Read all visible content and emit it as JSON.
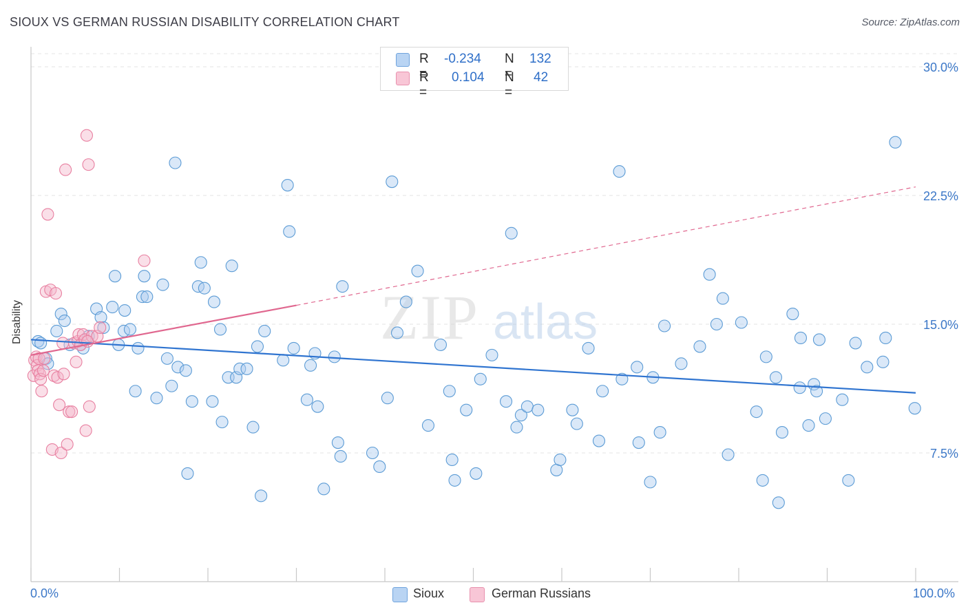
{
  "title": "SIOUX VS GERMAN RUSSIAN DISABILITY CORRELATION CHART",
  "source": "Source: ZipAtlas.com",
  "watermark": {
    "zip": "ZIP",
    "atlas": "atlas"
  },
  "colors": {
    "blue": "#5b9bd5",
    "blue_fill": "#aecdf0",
    "blue_line": "#2f74d0",
    "pink": "#e87fa0",
    "pink_fill": "#f5b8cc",
    "pink_line": "#e0678f",
    "tick": "#3c78c8"
  },
  "legend": {
    "rows": [
      {
        "r_label": "R =",
        "r_value": "-0.234",
        "n_label": "N =",
        "n_value": "132"
      },
      {
        "r_label": "R =",
        "r_value": "0.104",
        "n_label": "N =",
        "n_value": "42"
      }
    ],
    "bottom": [
      "Sioux",
      "German Russians"
    ]
  },
  "chart_data": {
    "type": "scatter",
    "title": "SIOUX VS GERMAN RUSSIAN DISABILITY CORRELATION CHART",
    "xlabel": "",
    "ylabel": "Disability",
    "xlim": [
      0,
      100
    ],
    "ylim": [
      0,
      32
    ],
    "x_tick_labels": [
      "0.0%",
      "100.0%"
    ],
    "y_ticks": [
      7.5,
      15.0,
      22.5,
      30.0
    ],
    "y_tick_labels": [
      "7.5%",
      "15.0%",
      "22.5%",
      "30.0%"
    ],
    "grid": true,
    "legend_position": "top-center",
    "series": [
      {
        "name": "Sioux",
        "r": -0.234,
        "n": 132,
        "trend": {
          "x": [
            0,
            100
          ],
          "y": [
            14.1,
            11.0
          ]
        },
        "points": [
          [
            0.8,
            14.0
          ],
          [
            1.1,
            13.9
          ],
          [
            1.7,
            13.0
          ],
          [
            1.9,
            12.7
          ],
          [
            2.9,
            14.6
          ],
          [
            3.4,
            15.6
          ],
          [
            3.8,
            15.2
          ],
          [
            4.4,
            13.8
          ],
          [
            5.6,
            13.8
          ],
          [
            5.9,
            13.6
          ],
          [
            6.5,
            14.3
          ],
          [
            7.4,
            15.9
          ],
          [
            7.9,
            15.4
          ],
          [
            8.2,
            14.8
          ],
          [
            9.2,
            16.0
          ],
          [
            9.5,
            17.8
          ],
          [
            9.9,
            13.8
          ],
          [
            10.5,
            14.6
          ],
          [
            10.6,
            15.8
          ],
          [
            11.2,
            14.7
          ],
          [
            11.8,
            11.1
          ],
          [
            12.1,
            13.6
          ],
          [
            12.6,
            16.6
          ],
          [
            12.8,
            17.8
          ],
          [
            13.1,
            16.6
          ],
          [
            14.2,
            10.7
          ],
          [
            14.9,
            17.3
          ],
          [
            15.4,
            13.0
          ],
          [
            15.9,
            11.4
          ],
          [
            16.3,
            24.4
          ],
          [
            16.6,
            12.5
          ],
          [
            17.5,
            12.3
          ],
          [
            17.7,
            6.3
          ],
          [
            18.2,
            10.5
          ],
          [
            18.9,
            17.2
          ],
          [
            19.2,
            18.6
          ],
          [
            19.6,
            17.1
          ],
          [
            20.5,
            10.5
          ],
          [
            20.7,
            16.3
          ],
          [
            21.4,
            14.7
          ],
          [
            21.6,
            9.3
          ],
          [
            22.3,
            11.9
          ],
          [
            22.7,
            18.4
          ],
          [
            23.2,
            11.9
          ],
          [
            23.6,
            12.4
          ],
          [
            24.4,
            12.4
          ],
          [
            25.1,
            9.0
          ],
          [
            25.6,
            13.7
          ],
          [
            26.0,
            5.0
          ],
          [
            26.4,
            14.6
          ],
          [
            28.5,
            12.9
          ],
          [
            29.0,
            23.1
          ],
          [
            29.2,
            20.4
          ],
          [
            29.7,
            13.6
          ],
          [
            31.2,
            10.6
          ],
          [
            31.6,
            12.6
          ],
          [
            32.1,
            13.3
          ],
          [
            32.4,
            10.2
          ],
          [
            33.1,
            5.4
          ],
          [
            34.3,
            13.1
          ],
          [
            34.7,
            8.1
          ],
          [
            35.0,
            7.3
          ],
          [
            35.2,
            17.2
          ],
          [
            38.6,
            7.5
          ],
          [
            39.4,
            6.7
          ],
          [
            40.3,
            10.7
          ],
          [
            40.8,
            23.3
          ],
          [
            41.4,
            14.5
          ],
          [
            42.4,
            16.3
          ],
          [
            43.7,
            18.1
          ],
          [
            44.9,
            9.1
          ],
          [
            46.3,
            13.8
          ],
          [
            47.3,
            11.1
          ],
          [
            47.6,
            7.1
          ],
          [
            47.9,
            5.9
          ],
          [
            49.2,
            10.0
          ],
          [
            50.3,
            6.3
          ],
          [
            50.8,
            11.8
          ],
          [
            52.1,
            13.2
          ],
          [
            53.7,
            10.5
          ],
          [
            54.3,
            20.3
          ],
          [
            54.9,
            9.0
          ],
          [
            55.4,
            9.7
          ],
          [
            56.1,
            10.2
          ],
          [
            57.3,
            10.0
          ],
          [
            59.4,
            6.5
          ],
          [
            59.8,
            7.1
          ],
          [
            61.2,
            10.0
          ],
          [
            61.7,
            9.2
          ],
          [
            63.0,
            13.6
          ],
          [
            64.2,
            8.2
          ],
          [
            64.6,
            11.1
          ],
          [
            66.5,
            23.9
          ],
          [
            66.8,
            11.8
          ],
          [
            68.5,
            12.5
          ],
          [
            68.7,
            8.1
          ],
          [
            70.0,
            5.8
          ],
          [
            70.3,
            11.9
          ],
          [
            71.1,
            8.7
          ],
          [
            71.6,
            14.9
          ],
          [
            73.5,
            12.7
          ],
          [
            75.6,
            13.7
          ],
          [
            76.7,
            17.9
          ],
          [
            77.5,
            15.0
          ],
          [
            78.2,
            16.5
          ],
          [
            78.8,
            7.4
          ],
          [
            80.3,
            15.1
          ],
          [
            82.0,
            9.9
          ],
          [
            82.7,
            5.9
          ],
          [
            83.1,
            13.1
          ],
          [
            84.2,
            11.9
          ],
          [
            84.5,
            4.6
          ],
          [
            84.9,
            8.7
          ],
          [
            86.1,
            15.6
          ],
          [
            86.9,
            11.3
          ],
          [
            87.0,
            14.2
          ],
          [
            87.9,
            9.1
          ],
          [
            88.5,
            11.5
          ],
          [
            88.8,
            11.1
          ],
          [
            89.1,
            14.1
          ],
          [
            89.8,
            9.5
          ],
          [
            91.7,
            10.6
          ],
          [
            92.4,
            5.9
          ],
          [
            93.2,
            13.9
          ],
          [
            94.5,
            12.5
          ],
          [
            96.3,
            12.8
          ],
          [
            96.6,
            14.2
          ],
          [
            97.7,
            25.6
          ],
          [
            99.9,
            10.1
          ]
        ]
      },
      {
        "name": "German Russians",
        "r": 0.104,
        "n": 42,
        "trend": {
          "x": [
            0,
            30,
            100
          ],
          "y": [
            13.2,
            16.1,
            23.0
          ],
          "solid_until_x": 30
        },
        "points": [
          [
            0.3,
            12.0
          ],
          [
            0.4,
            12.9
          ],
          [
            0.6,
            13.1
          ],
          [
            0.7,
            12.6
          ],
          [
            0.8,
            12.3
          ],
          [
            0.9,
            13.0
          ],
          [
            1.0,
            12.1
          ],
          [
            1.1,
            11.8
          ],
          [
            1.2,
            11.1
          ],
          [
            1.4,
            12.3
          ],
          [
            1.5,
            13.0
          ],
          [
            1.7,
            16.9
          ],
          [
            1.9,
            21.4
          ],
          [
            2.2,
            17.0
          ],
          [
            2.4,
            7.7
          ],
          [
            2.6,
            12.0
          ],
          [
            2.8,
            16.8
          ],
          [
            3.0,
            11.9
          ],
          [
            3.2,
            10.3
          ],
          [
            3.4,
            7.5
          ],
          [
            3.6,
            13.9
          ],
          [
            3.7,
            12.1
          ],
          [
            3.9,
            24.0
          ],
          [
            4.1,
            8.0
          ],
          [
            4.3,
            9.9
          ],
          [
            4.6,
            9.9
          ],
          [
            4.9,
            13.9
          ],
          [
            5.1,
            12.8
          ],
          [
            5.3,
            14.0
          ],
          [
            5.4,
            14.4
          ],
          [
            5.6,
            13.8
          ],
          [
            5.9,
            14.4
          ],
          [
            6.1,
            14.1
          ],
          [
            6.2,
            8.8
          ],
          [
            6.5,
            24.3
          ],
          [
            6.6,
            10.2
          ],
          [
            6.9,
            14.3
          ],
          [
            6.4,
            14.0
          ],
          [
            6.3,
            26.0
          ],
          [
            7.5,
            14.3
          ],
          [
            7.8,
            14.8
          ],
          [
            12.8,
            18.7
          ]
        ]
      }
    ]
  }
}
